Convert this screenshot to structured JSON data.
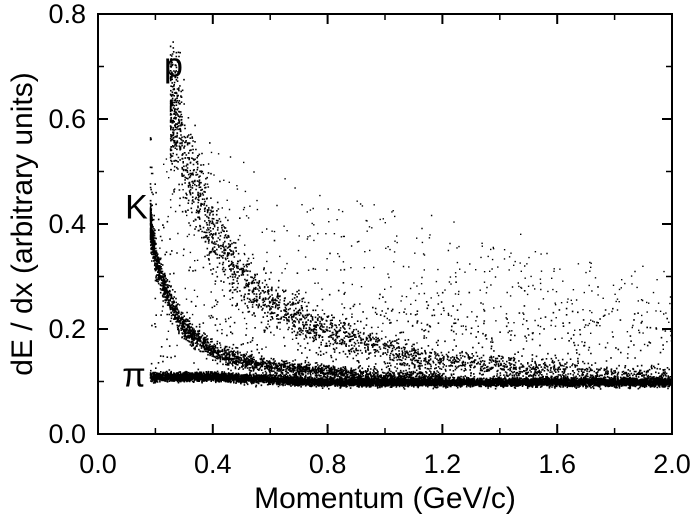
{
  "chart_data": {
    "type": "scatter",
    "title": "",
    "xlabel": "Momentum (GeV/c)",
    "ylabel": "dE / dx (arbitrary units)",
    "xlim": [
      0.0,
      2.0
    ],
    "ylim": [
      0.0,
      0.8
    ],
    "x_ticks": [
      "0.0",
      "0.4",
      "0.8",
      "1.2",
      "1.6",
      "2.0"
    ],
    "y_ticks": [
      "0.0",
      "0.2",
      "0.4",
      "0.6",
      "0.8"
    ],
    "grid": false,
    "marker_color": "#000000",
    "annotations": [
      {
        "text": "p",
        "x": 0.265,
        "y": 0.7
      },
      {
        "text": "K",
        "x": 0.185,
        "y": 0.43
      },
      {
        "text": "π",
        "x": 0.175,
        "y": 0.11
      }
    ],
    "series": [
      {
        "name": "",
        "x_min": 0.18,
        "x_max": 2.0,
        "points": [
          {
            "x": 0.2,
            "y": 0.11
          },
          {
            "x": 0.3,
            "y": 0.11
          },
          {
            "x": 0.4,
            "y": 0.11
          },
          {
            "x": 0.6,
            "y": 0.105
          },
          {
            "x": 0.8,
            "y": 0.1
          },
          {
            "x": 1.0,
            "y": 0.1
          },
          {
            "x": 1.2,
            "y": 0.1
          },
          {
            "x": 1.4,
            "y": 0.1
          },
          {
            "x": 1.6,
            "y": 0.1
          },
          {
            "x": 1.8,
            "y": 0.1
          },
          {
            "x": 2.0,
            "y": 0.1
          }
        ]
      },
      {
        "name": "",
        "x_min": 0.18,
        "x_max": 1.2,
        "points": [
          {
            "x": 0.18,
            "y": 0.4
          },
          {
            "x": 0.2,
            "y": 0.33
          },
          {
            "x": 0.25,
            "y": 0.25
          },
          {
            "x": 0.3,
            "y": 0.2
          },
          {
            "x": 0.4,
            "y": 0.16
          },
          {
            "x": 0.5,
            "y": 0.14
          },
          {
            "x": 0.6,
            "y": 0.13
          },
          {
            "x": 0.8,
            "y": 0.12
          },
          {
            "x": 1.0,
            "y": 0.11
          }
        ]
      },
      {
        "name": "",
        "x_min": 0.25,
        "x_max": 2.0,
        "points": [
          {
            "x": 0.27,
            "y": 0.62
          },
          {
            "x": 0.3,
            "y": 0.52
          },
          {
            "x": 0.35,
            "y": 0.45
          },
          {
            "x": 0.4,
            "y": 0.38
          },
          {
            "x": 0.5,
            "y": 0.3
          },
          {
            "x": 0.6,
            "y": 0.25
          },
          {
            "x": 0.8,
            "y": 0.19
          },
          {
            "x": 1.0,
            "y": 0.16
          },
          {
            "x": 1.2,
            "y": 0.14
          },
          {
            "x": 1.6,
            "y": 0.12
          },
          {
            "x": 2.0,
            "y": 0.11
          }
        ]
      }
    ]
  }
}
